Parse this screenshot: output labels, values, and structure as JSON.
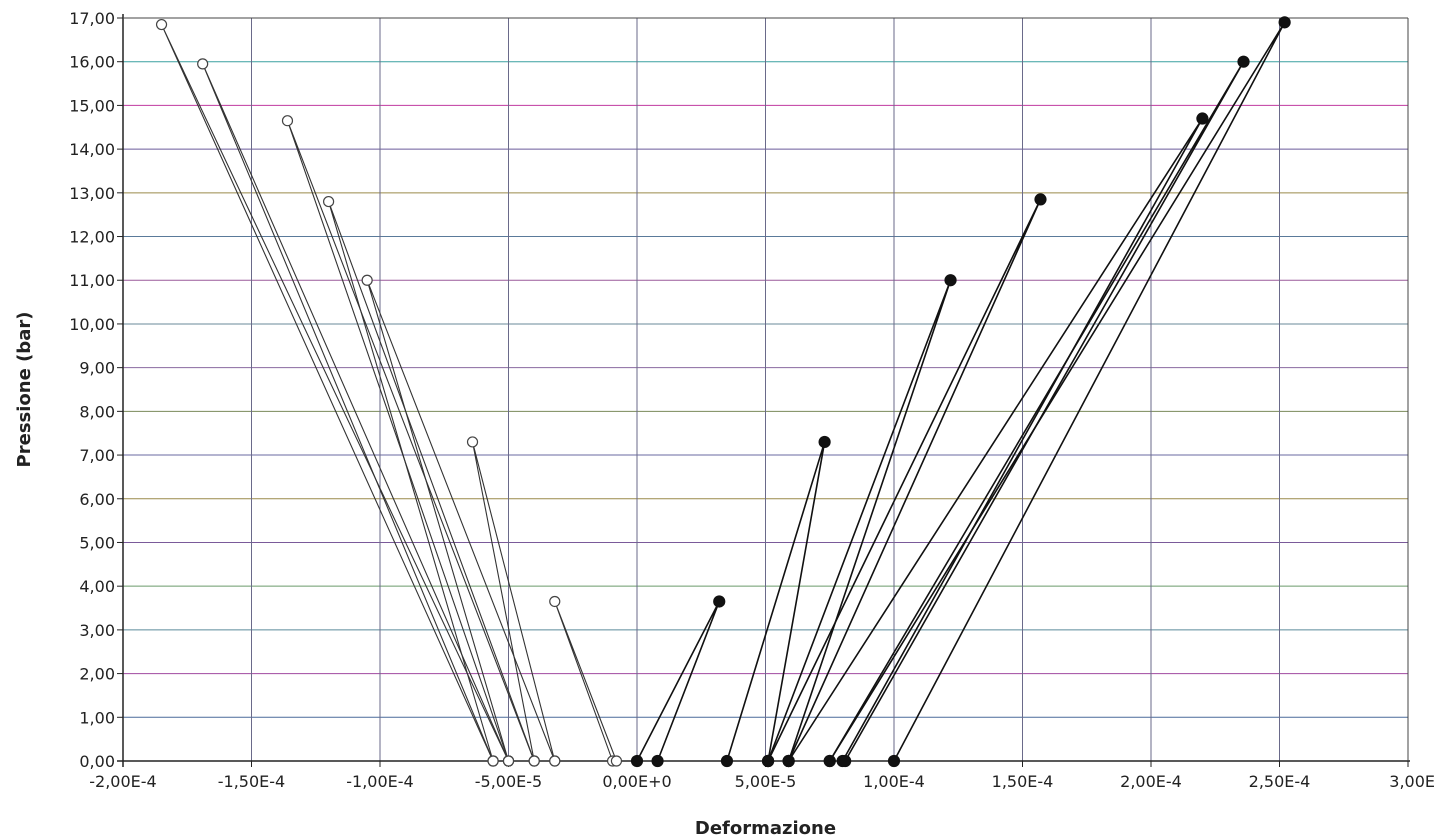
{
  "chart_data": {
    "type": "scatter",
    "title": "",
    "xlabel": "Deformazione",
    "ylabel": "Pressione (bar)",
    "xlim": [
      -0.0002,
      0.0003
    ],
    "ylim": [
      0,
      17
    ],
    "grid": true,
    "x_ticks": [
      "-2,00E-4",
      "-1,50E-4",
      "-1,00E-4",
      "-5,00E-5",
      "0,00E+0",
      "5,00E-5",
      "1,00E-4",
      "1,50E-4",
      "2,00E-4",
      "2,50E-4",
      "3,00E"
    ],
    "y_ticks": [
      "0,00",
      "1,00",
      "2,00",
      "3,00",
      "4,00",
      "5,00",
      "6,00",
      "7,00",
      "8,00",
      "9,00",
      "10,00",
      "11,00",
      "12,00",
      "13,00",
      "14,00",
      "15,00",
      "16,00",
      "17,00"
    ],
    "series": [
      {
        "marker": "open-circle",
        "lines": [
          [
            [
              -9.5e-06,
              0
            ],
            [
              -3.2e-05,
              3.65
            ],
            [
              -8e-06,
              0
            ]
          ],
          [
            [
              -3.2e-05,
              0
            ],
            [
              -6.4e-05,
              7.3
            ],
            [
              -4e-05,
              0
            ]
          ],
          [
            [
              -5e-05,
              0
            ],
            [
              -0.000105,
              11.0
            ],
            [
              -3.2e-05,
              0
            ]
          ],
          [
            [
              -5.6e-05,
              0
            ],
            [
              -0.00012,
              12.8
            ],
            [
              -4e-05,
              0
            ]
          ],
          [
            [
              -5e-05,
              0
            ],
            [
              -0.000136,
              14.65
            ],
            [
              -4e-05,
              0
            ]
          ],
          [
            [
              -5.6e-05,
              0
            ],
            [
              -0.000169,
              15.95
            ],
            [
              -5e-05,
              0
            ]
          ],
          [
            [
              -5.6e-05,
              0
            ],
            [
              -0.000185,
              16.85
            ],
            [
              -5e-05,
              0
            ]
          ]
        ]
      },
      {
        "marker": "filled-circle",
        "lines": [
          [
            [
              0.0,
              0
            ],
            [
              3.2e-05,
              3.65
            ],
            [
              8e-06,
              0
            ]
          ],
          [
            [
              3.5e-05,
              0
            ],
            [
              7.3e-05,
              7.3
            ],
            [
              5.1e-05,
              0
            ]
          ],
          [
            [
              5.1e-05,
              0
            ],
            [
              0.000122,
              11.0
            ],
            [
              5.9e-05,
              0
            ]
          ],
          [
            [
              5.1e-05,
              0
            ],
            [
              0.000157,
              12.85
            ],
            [
              5.9e-05,
              0
            ]
          ],
          [
            [
              5.9e-05,
              0
            ],
            [
              0.00022,
              14.7
            ],
            [
              8e-05,
              0
            ]
          ],
          [
            [
              7.5e-05,
              0
            ],
            [
              0.000236,
              16.0
            ],
            [
              8.1e-05,
              0
            ]
          ],
          [
            [
              7.5e-05,
              0
            ],
            [
              0.000252,
              16.9
            ],
            [
              0.0001,
              0
            ]
          ]
        ]
      }
    ]
  }
}
